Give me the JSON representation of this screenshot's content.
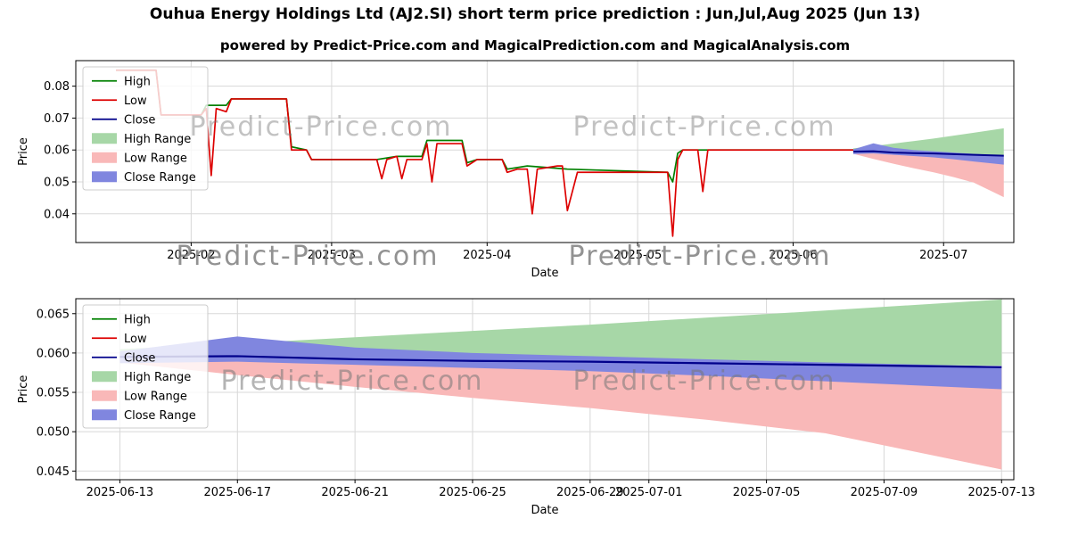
{
  "page": {
    "title": "Ouhua Energy Holdings Ltd (AJ2.SI) short term price prediction : Jun,Jul,Aug 2025 (Jun 13)",
    "subtitle": "powered by Predict-Price.com and MagicalPrediction.com and MagicalAnalysis.com",
    "watermark": "Predict-Price.com"
  },
  "colors": {
    "high": "#008000",
    "low": "#dd0000",
    "close": "#00008b",
    "high_range": "#a7d7a7",
    "low_range": "#f9b8b8",
    "close_range": "#8086df",
    "grid": "#d8d8d8",
    "frame": "#000000",
    "watermark": "#777777"
  },
  "chart_data": [
    {
      "id": "overview",
      "type": "line",
      "title": "",
      "xlabel": "Date",
      "ylabel": "Price",
      "xlim": [
        "2025-01-09",
        "2025-07-15"
      ],
      "ylim": [
        0.031,
        0.088
      ],
      "x_ticks": [
        {
          "date": "2025-02-01",
          "label": "2025-02"
        },
        {
          "date": "2025-03-01",
          "label": "2025-03"
        },
        {
          "date": "2025-04-01",
          "label": "2025-04"
        },
        {
          "date": "2025-05-01",
          "label": "2025-05"
        },
        {
          "date": "2025-06-01",
          "label": "2025-06"
        },
        {
          "date": "2025-07-01",
          "label": "2025-07"
        }
      ],
      "y_ticks": [
        {
          "value": 0.04,
          "label": "0.04"
        },
        {
          "value": 0.05,
          "label": "0.05"
        },
        {
          "value": 0.06,
          "label": "0.06"
        },
        {
          "value": 0.07,
          "label": "0.07"
        },
        {
          "value": 0.08,
          "label": "0.08"
        }
      ],
      "legend": [
        {
          "label": "High",
          "type": "line",
          "color": "high"
        },
        {
          "label": "Low",
          "type": "line",
          "color": "low"
        },
        {
          "label": "Close",
          "type": "line",
          "color": "close"
        },
        {
          "label": "High Range",
          "type": "patch",
          "color": "high_range"
        },
        {
          "label": "Low Range",
          "type": "patch",
          "color": "low_range"
        },
        {
          "label": "Close Range",
          "type": "patch",
          "color": "close_range"
        }
      ],
      "bands": [
        {
          "name": "High Range",
          "color": "high_range",
          "dates": [
            "2025-06-13",
            "2025-06-17",
            "2025-06-21",
            "2025-06-25",
            "2025-06-29",
            "2025-07-03",
            "2025-07-07",
            "2025-07-13"
          ],
          "upper": [
            0.0605,
            0.0612,
            0.062,
            0.0628,
            0.0636,
            0.0645,
            0.0654,
            0.0668
          ],
          "lower": [
            0.0595,
            0.0591,
            0.0589,
            0.0588,
            0.0587,
            0.0586,
            0.0585,
            0.0584
          ]
        },
        {
          "name": "Low Range",
          "color": "low_range",
          "dates": [
            "2025-06-13",
            "2025-06-17",
            "2025-06-21",
            "2025-06-25",
            "2025-06-29",
            "2025-07-03",
            "2025-07-07",
            "2025-07-13"
          ],
          "upper": [
            0.06,
            0.0596,
            0.0593,
            0.0591,
            0.0589,
            0.0587,
            0.0584,
            0.0581
          ],
          "lower": [
            0.0588,
            0.0572,
            0.0557,
            0.0543,
            0.053,
            0.0515,
            0.0498,
            0.0452
          ]
        },
        {
          "name": "Close Range",
          "color": "close_range",
          "dates": [
            "2025-06-13",
            "2025-06-17",
            "2025-06-21",
            "2025-06-25",
            "2025-06-29",
            "2025-07-03",
            "2025-07-07",
            "2025-07-13"
          ],
          "upper": [
            0.0602,
            0.0621,
            0.0607,
            0.06,
            0.0596,
            0.0592,
            0.0588,
            0.0583
          ],
          "lower": [
            0.0587,
            0.0589,
            0.0585,
            0.0581,
            0.0577,
            0.0571,
            0.0564,
            0.0554
          ]
        }
      ],
      "series": [
        {
          "name": "High",
          "color": "high",
          "width": 1.7,
          "points": [
            [
              "2025-01-17",
              0.085
            ],
            [
              "2025-01-25",
              0.085
            ],
            [
              "2025-01-26",
              0.071
            ],
            [
              "2025-02-03",
              0.071
            ],
            [
              "2025-02-04",
              0.074
            ],
            [
              "2025-02-08",
              0.074
            ],
            [
              "2025-02-09",
              0.076
            ],
            [
              "2025-02-20",
              0.076
            ],
            [
              "2025-02-21",
              0.061
            ],
            [
              "2025-02-24",
              0.06
            ],
            [
              "2025-02-25",
              0.057
            ],
            [
              "2025-03-10",
              0.057
            ],
            [
              "2025-03-14",
              0.058
            ],
            [
              "2025-03-19",
              0.058
            ],
            [
              "2025-03-20",
              0.063
            ],
            [
              "2025-03-27",
              0.063
            ],
            [
              "2025-03-28",
              0.056
            ],
            [
              "2025-03-30",
              0.057
            ],
            [
              "2025-04-04",
              0.057
            ],
            [
              "2025-04-05",
              0.054
            ],
            [
              "2025-04-09",
              0.055
            ],
            [
              "2025-04-17",
              0.054
            ],
            [
              "2025-05-07",
              0.053
            ],
            [
              "2025-05-08",
              0.05
            ],
            [
              "2025-05-09",
              0.059
            ],
            [
              "2025-05-10",
              0.06
            ],
            [
              "2025-06-13",
              0.06
            ]
          ]
        },
        {
          "name": "Low",
          "color": "low",
          "width": 1.7,
          "points": [
            [
              "2025-01-17",
              0.085
            ],
            [
              "2025-01-25",
              0.085
            ],
            [
              "2025-01-26",
              0.071
            ],
            [
              "2025-02-03",
              0.071
            ],
            [
              "2025-02-04",
              0.073
            ],
            [
              "2025-02-05",
              0.052
            ],
            [
              "2025-02-06",
              0.073
            ],
            [
              "2025-02-08",
              0.072
            ],
            [
              "2025-02-09",
              0.076
            ],
            [
              "2025-02-20",
              0.076
            ],
            [
              "2025-02-21",
              0.06
            ],
            [
              "2025-02-24",
              0.06
            ],
            [
              "2025-02-25",
              0.057
            ],
            [
              "2025-03-10",
              0.057
            ],
            [
              "2025-03-11",
              0.051
            ],
            [
              "2025-03-12",
              0.057
            ],
            [
              "2025-03-14",
              0.058
            ],
            [
              "2025-03-15",
              0.051
            ],
            [
              "2025-03-16",
              0.057
            ],
            [
              "2025-03-19",
              0.057
            ],
            [
              "2025-03-20",
              0.062
            ],
            [
              "2025-03-21",
              0.05
            ],
            [
              "2025-03-22",
              0.062
            ],
            [
              "2025-03-27",
              0.062
            ],
            [
              "2025-03-28",
              0.055
            ],
            [
              "2025-03-30",
              0.057
            ],
            [
              "2025-04-04",
              0.057
            ],
            [
              "2025-04-05",
              0.053
            ],
            [
              "2025-04-07",
              0.054
            ],
            [
              "2025-04-09",
              0.054
            ],
            [
              "2025-04-10",
              0.04
            ],
            [
              "2025-04-11",
              0.054
            ],
            [
              "2025-04-15",
              0.055
            ],
            [
              "2025-04-16",
              0.055
            ],
            [
              "2025-04-17",
              0.041
            ],
            [
              "2025-04-19",
              0.053
            ],
            [
              "2025-05-07",
              0.053
            ],
            [
              "2025-05-08",
              0.033
            ],
            [
              "2025-05-09",
              0.057
            ],
            [
              "2025-05-10",
              0.06
            ],
            [
              "2025-05-13",
              0.06
            ],
            [
              "2025-05-14",
              0.047
            ],
            [
              "2025-05-15",
              0.06
            ],
            [
              "2025-06-13",
              0.06
            ]
          ]
        },
        {
          "name": "Close",
          "color": "close",
          "width": 2,
          "points": [
            [
              "2025-06-13",
              0.0595
            ],
            [
              "2025-06-17",
              0.0596
            ],
            [
              "2025-06-21",
              0.0592
            ],
            [
              "2025-06-25",
              0.059
            ],
            [
              "2025-06-29",
              0.0589
            ],
            [
              "2025-07-03",
              0.0587
            ],
            [
              "2025-07-07",
              0.0585
            ],
            [
              "2025-07-13",
              0.0582
            ]
          ]
        }
      ]
    },
    {
      "id": "forecast-detail",
      "type": "line",
      "title": "",
      "xlabel": "Date",
      "ylabel": "Price",
      "xlim": [
        "2025-06-11T12:00:00Z",
        "2025-07-13T10:00:00Z"
      ],
      "ylim": [
        0.0439,
        0.0669
      ],
      "x_ticks": [
        {
          "date": "2025-06-13",
          "label": "2025-06-13"
        },
        {
          "date": "2025-06-17",
          "label": "2025-06-17"
        },
        {
          "date": "2025-06-21",
          "label": "2025-06-21"
        },
        {
          "date": "2025-06-25",
          "label": "2025-06-25"
        },
        {
          "date": "2025-06-29",
          "label": "2025-06-29"
        },
        {
          "date": "2025-07-01",
          "label": "2025-07-01"
        },
        {
          "date": "2025-07-05",
          "label": "2025-07-05"
        },
        {
          "date": "2025-07-09",
          "label": "2025-07-09"
        },
        {
          "date": "2025-07-13",
          "label": "2025-07-13"
        }
      ],
      "y_ticks": [
        {
          "value": 0.045,
          "label": "0.045"
        },
        {
          "value": 0.05,
          "label": "0.050"
        },
        {
          "value": 0.055,
          "label": "0.055"
        },
        {
          "value": 0.06,
          "label": "0.060"
        },
        {
          "value": 0.065,
          "label": "0.065"
        }
      ],
      "legend": [
        {
          "label": "High",
          "type": "line",
          "color": "high"
        },
        {
          "label": "Low",
          "type": "line",
          "color": "low"
        },
        {
          "label": "Close",
          "type": "line",
          "color": "close"
        },
        {
          "label": "High Range",
          "type": "patch",
          "color": "high_range"
        },
        {
          "label": "Low Range",
          "type": "patch",
          "color": "low_range"
        },
        {
          "label": "Close Range",
          "type": "patch",
          "color": "close_range"
        }
      ],
      "bands": [
        {
          "name": "High Range",
          "color": "high_range",
          "dates": [
            "2025-06-13",
            "2025-06-17",
            "2025-06-21",
            "2025-06-25",
            "2025-06-29",
            "2025-07-03",
            "2025-07-07",
            "2025-07-13"
          ],
          "upper": [
            0.0605,
            0.0612,
            0.062,
            0.0628,
            0.0636,
            0.0645,
            0.0654,
            0.0668
          ],
          "lower": [
            0.0595,
            0.0591,
            0.0589,
            0.0588,
            0.0587,
            0.0586,
            0.0585,
            0.0584
          ]
        },
        {
          "name": "Low Range",
          "color": "low_range",
          "dates": [
            "2025-06-13",
            "2025-06-17",
            "2025-06-21",
            "2025-06-25",
            "2025-06-29",
            "2025-07-03",
            "2025-07-07",
            "2025-07-13"
          ],
          "upper": [
            0.06,
            0.0596,
            0.0593,
            0.0591,
            0.0589,
            0.0587,
            0.0584,
            0.0581
          ],
          "lower": [
            0.0588,
            0.0572,
            0.0557,
            0.0543,
            0.053,
            0.0515,
            0.0498,
            0.0452
          ]
        },
        {
          "name": "Close Range",
          "color": "close_range",
          "dates": [
            "2025-06-13",
            "2025-06-17",
            "2025-06-21",
            "2025-06-25",
            "2025-06-29",
            "2025-07-03",
            "2025-07-07",
            "2025-07-13"
          ],
          "upper": [
            0.0602,
            0.0621,
            0.0607,
            0.06,
            0.0596,
            0.0592,
            0.0588,
            0.0583
          ],
          "lower": [
            0.0587,
            0.0589,
            0.0585,
            0.0581,
            0.0577,
            0.0571,
            0.0564,
            0.0554
          ]
        }
      ],
      "series": [
        {
          "name": "Close",
          "color": "close",
          "width": 2.2,
          "points": [
            [
              "2025-06-13",
              0.0595
            ],
            [
              "2025-06-17",
              0.0596
            ],
            [
              "2025-06-21",
              0.0592
            ],
            [
              "2025-06-25",
              0.059
            ],
            [
              "2025-06-29",
              0.0589
            ],
            [
              "2025-07-03",
              0.0587
            ],
            [
              "2025-07-07",
              0.0585
            ],
            [
              "2025-07-13",
              0.0582
            ]
          ]
        }
      ]
    }
  ]
}
